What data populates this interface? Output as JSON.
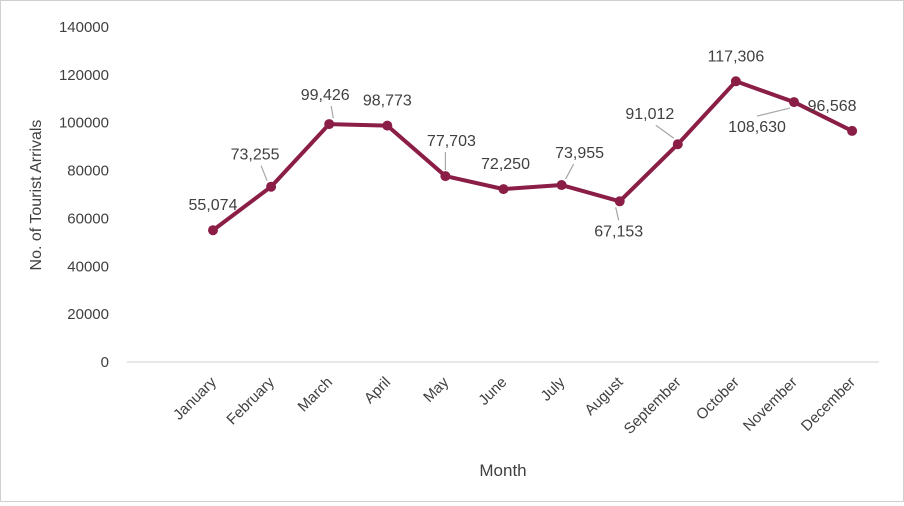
{
  "chart_data": {
    "type": "line",
    "title": "",
    "xlabel": "Month",
    "ylabel": "No. of Tourist Arrivals",
    "categories": [
      "January",
      "February",
      "March",
      "April",
      "May",
      "June",
      "July",
      "August",
      "September",
      "October",
      "November",
      "December"
    ],
    "series": [
      {
        "values": [
          55074,
          73255,
          99426,
          98773,
          77703,
          72250,
          73955,
          67153,
          91012,
          117306,
          108630,
          96568
        ],
        "data_labels": [
          "55,074",
          "73,255",
          "99,426",
          "98,773",
          "77,703",
          "72,250",
          "73,955",
          "67,153",
          "91,012",
          "117,306",
          "108,630",
          "96,568"
        ],
        "color": "#8B1E46"
      }
    ],
    "ylim": [
      0,
      140000
    ],
    "yticks": [
      0,
      20000,
      40000,
      60000,
      80000,
      100000,
      120000,
      140000
    ],
    "ytick_labels": [
      "0",
      "20000",
      "40000",
      "60000",
      "80000",
      "100000",
      "120000",
      "140000"
    ],
    "grid": false,
    "legend": "none",
    "axis_color": "#d9d9d9",
    "text_color": "#404040",
    "leader_color": "#a6a6a6"
  }
}
